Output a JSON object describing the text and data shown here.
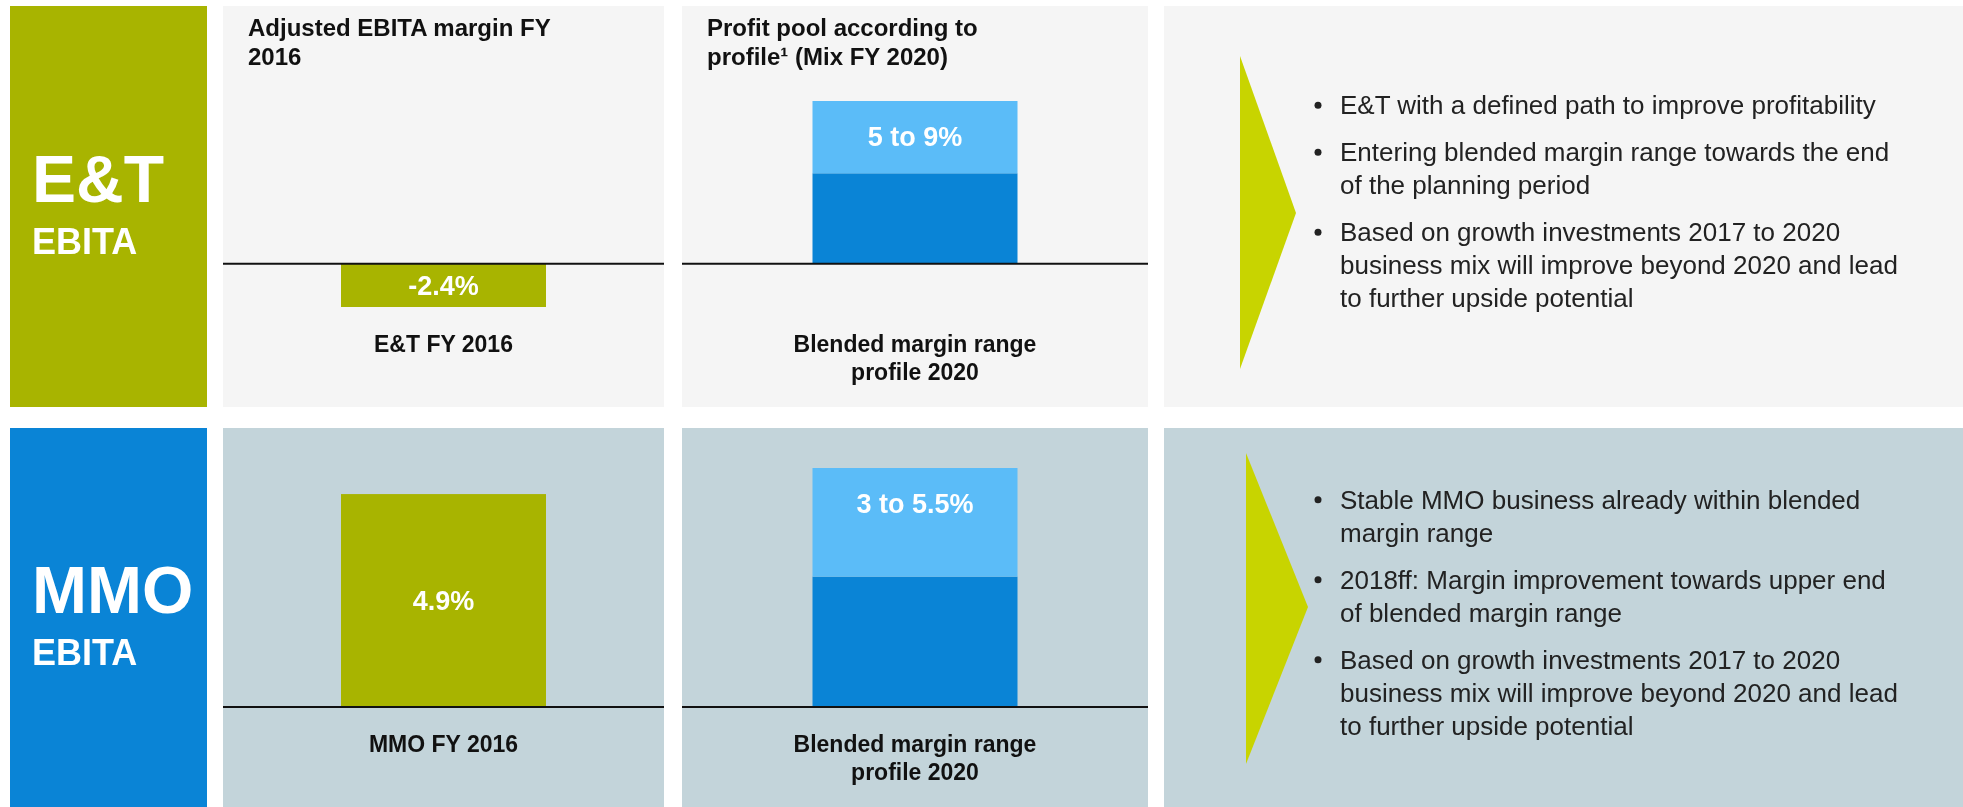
{
  "chart_data": [
    {
      "type": "bar",
      "stacked": true,
      "ylabel": "E&T EBITA",
      "categories": [
        "E&T FY 2016",
        "Blended margin range profile 2020"
      ],
      "annotations": [
        "Adjusted EBITA margin FY 2016",
        "Profit pool according to profile¹ (Mix FY 2020)",
        {
          "text": "5 to 9%",
          "x": "Blended margin range profile 2020",
          "y": 9
        }
      ],
      "ref_lines": [
        {
          "axis": "y",
          "value": 0,
          "color": "#111111"
        }
      ],
      "series": [
        {
          "values": [
            -2.4,
            5
          ],
          "colors": [
            "#a8b400",
            "#0a84d6"
          ],
          "value_labels": [
            "-2.4%",
            null
          ]
        },
        {
          "values": [
            null,
            4
          ],
          "colors": [
            null,
            "#5bbcf8"
          ]
        }
      ]
    },
    {
      "type": "other",
      "annotations": [
        "E&T with a defined path to improve profitability",
        "Entering blended margin range towards the end of the planning period",
        "Based on growth investments 2017 to 2020 business mix will improve beyond 2020 and lead to further upside potential"
      ]
    },
    {
      "type": "bar",
      "stacked": true,
      "ylabel": "MMO EBITA",
      "categories": [
        "MMO FY 2016",
        "Blended margin range profile 2020"
      ],
      "annotations": [
        {
          "text": "3 to 5.5%",
          "x": "Blended margin range profile 2020",
          "y": 5.5
        }
      ],
      "series": [
        {
          "values": [
            4.9,
            3
          ],
          "colors": [
            "#a8b400",
            "#0a84d6"
          ],
          "value_labels": [
            "4.9%",
            null
          ]
        },
        {
          "values": [
            null,
            2.5
          ],
          "colors": [
            null,
            "#5bbcf8"
          ]
        }
      ]
    },
    {
      "type": "other",
      "annotations": [
        "Stable MMO business already within blended margin range",
        "2018ff: Margin improvement towards upper end of blended margin range",
        "Based on growth investments 2017 to 2020 business mix will improve beyond 2020 and lead to further upside potential"
      ]
    }
  ]
}
